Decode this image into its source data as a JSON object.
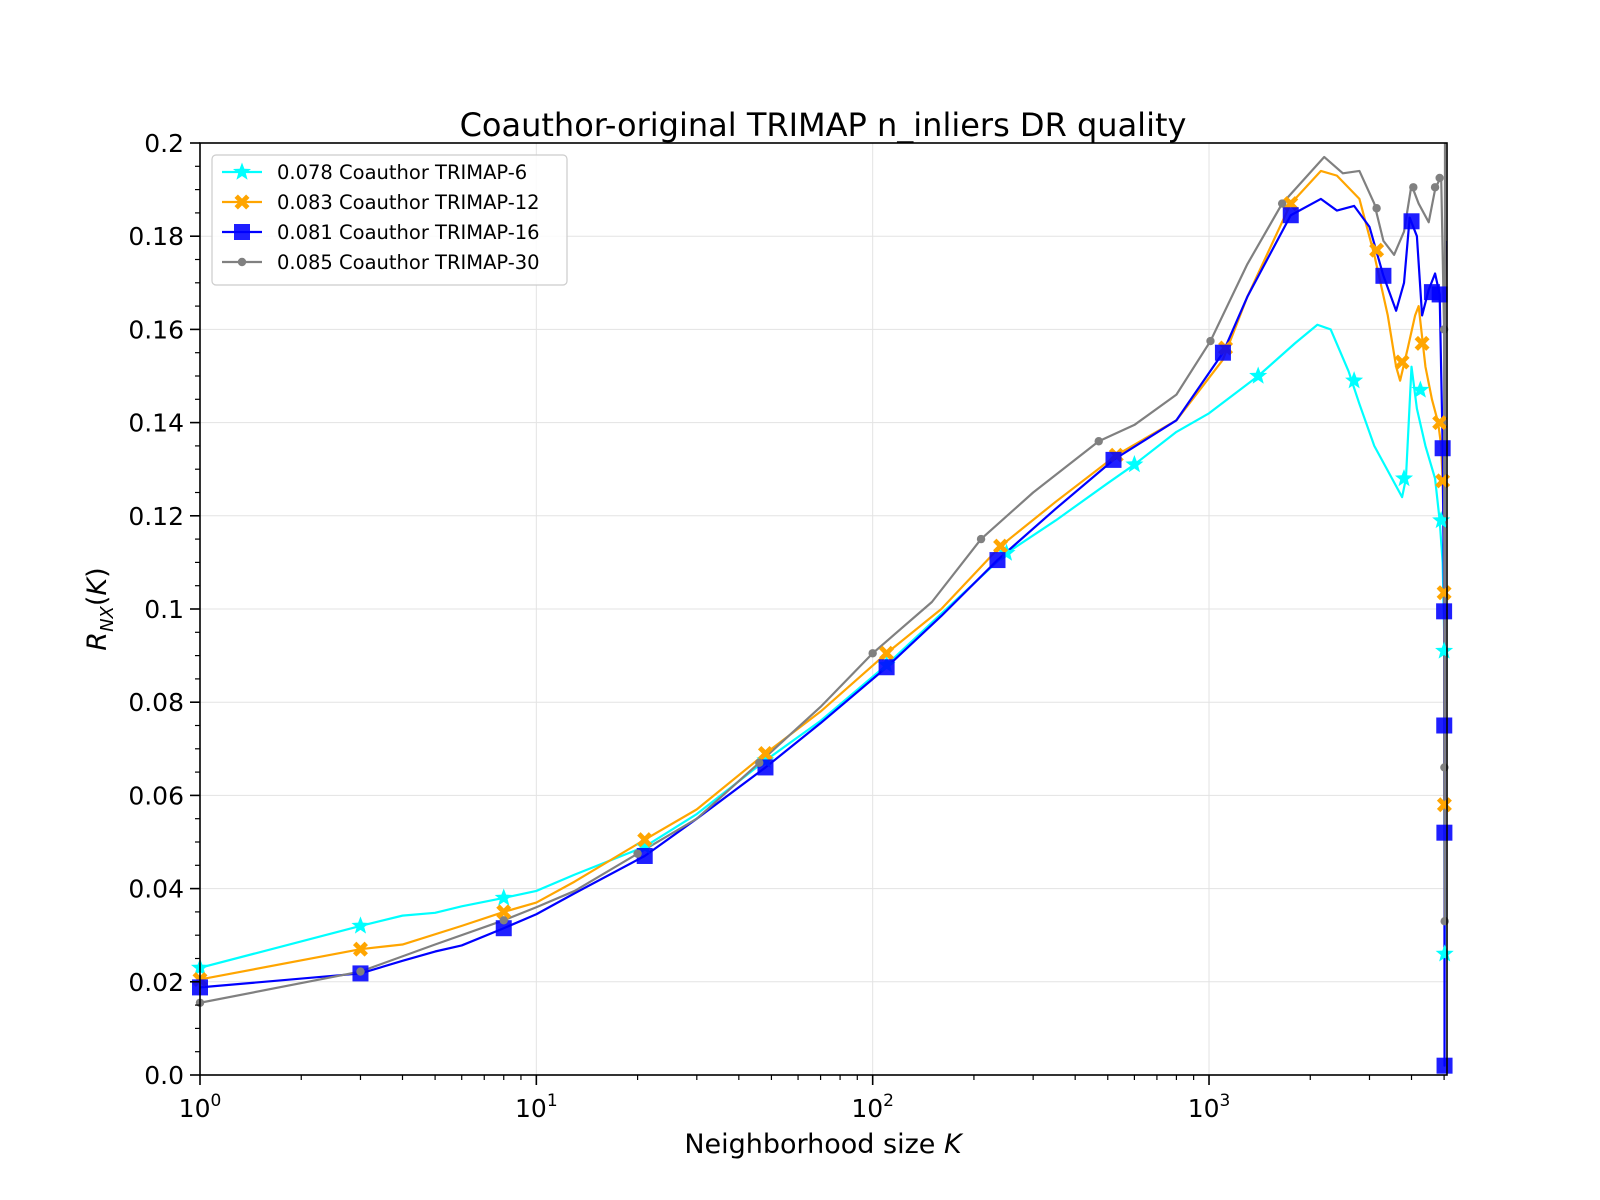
{
  "chart_data": {
    "type": "line",
    "title": "Coauthor-original TRIMAP n_inliers DR quality",
    "xlabel": "Neighborhood size K",
    "ylabel": "R_NX(K)",
    "xscale": "log",
    "xlim": [
      1,
      5100
    ],
    "ylim": [
      0.0,
      0.2
    ],
    "x_ticks": [
      {
        "value": 1,
        "mantissa": "10",
        "exp": "0"
      },
      {
        "value": 10,
        "mantissa": "10",
        "exp": "1"
      },
      {
        "value": 100,
        "mantissa": "10",
        "exp": "2"
      },
      {
        "value": 1000,
        "mantissa": "10",
        "exp": "3"
      }
    ],
    "y_ticks": [
      {
        "value": 0.0,
        "label": "0.0"
      },
      {
        "value": 0.02,
        "label": "0.02"
      },
      {
        "value": 0.04,
        "label": "0.04"
      },
      {
        "value": 0.06,
        "label": "0.06"
      },
      {
        "value": 0.08,
        "label": "0.08"
      },
      {
        "value": 0.1,
        "label": "0.1"
      },
      {
        "value": 0.12,
        "label": "0.12"
      },
      {
        "value": 0.14,
        "label": "0.14"
      },
      {
        "value": 0.16,
        "label": "0.16"
      },
      {
        "value": 0.18,
        "label": "0.18"
      },
      {
        "value": 0.2,
        "label": "0.2"
      }
    ],
    "grid": true,
    "legend_position": "top-left",
    "series": [
      {
        "name": "0.078 Coauthor TRIMAP-6",
        "color": "#00ffff",
        "marker": "star",
        "points": [
          [
            1,
            0.023
          ],
          [
            3,
            0.032
          ],
          [
            4,
            0.0342
          ],
          [
            5,
            0.0348
          ],
          [
            6,
            0.0362
          ],
          [
            8,
            0.038
          ],
          [
            10,
            0.0395
          ],
          [
            13,
            0.043
          ],
          [
            21,
            0.049
          ],
          [
            30,
            0.056
          ],
          [
            48,
            0.0675
          ],
          [
            70,
            0.076
          ],
          [
            110,
            0.088
          ],
          [
            160,
            0.099
          ],
          [
            250,
            0.112
          ],
          [
            350,
            0.119
          ],
          [
            500,
            0.127
          ],
          [
            600,
            0.131
          ],
          [
            800,
            0.138
          ],
          [
            1000,
            0.142
          ],
          [
            1400,
            0.15
          ],
          [
            1800,
            0.157
          ],
          [
            2100,
            0.161
          ],
          [
            2300,
            0.16
          ],
          [
            2600,
            0.151
          ],
          [
            2800,
            0.144
          ],
          [
            3100,
            0.135
          ],
          [
            3500,
            0.128
          ],
          [
            3750,
            0.124
          ],
          [
            3850,
            0.128
          ],
          [
            4000,
            0.152
          ],
          [
            4150,
            0.143
          ],
          [
            4400,
            0.135
          ],
          [
            4700,
            0.128
          ],
          [
            4850,
            0.119
          ],
          [
            4950,
            0.11
          ],
          [
            5000,
            0.095
          ],
          [
            5010,
            0.06
          ],
          [
            5020,
            0.026
          ]
        ],
        "markers": [
          [
            1,
            0.023
          ],
          [
            3,
            0.032
          ],
          [
            8,
            0.038
          ],
          [
            21,
            0.049
          ],
          [
            48,
            0.0675
          ],
          [
            110,
            0.088
          ],
          [
            250,
            0.112
          ],
          [
            600,
            0.131
          ],
          [
            1400,
            0.15
          ],
          [
            2700,
            0.149
          ],
          [
            3800,
            0.128
          ],
          [
            4250,
            0.147
          ],
          [
            4900,
            0.119
          ],
          [
            5000,
            0.091
          ],
          [
            5020,
            0.026
          ]
        ]
      },
      {
        "name": "0.083 Coauthor TRIMAP-12",
        "color": "#ffa500",
        "marker": "x",
        "points": [
          [
            1,
            0.0205
          ],
          [
            3,
            0.027
          ],
          [
            4,
            0.028
          ],
          [
            6,
            0.032
          ],
          [
            8,
            0.035
          ],
          [
            10,
            0.037
          ],
          [
            13,
            0.0415
          ],
          [
            21,
            0.0505
          ],
          [
            30,
            0.057
          ],
          [
            48,
            0.069
          ],
          [
            70,
            0.078
          ],
          [
            110,
            0.0905
          ],
          [
            160,
            0.1
          ],
          [
            240,
            0.1135
          ],
          [
            350,
            0.123
          ],
          [
            530,
            0.133
          ],
          [
            800,
            0.1405
          ],
          [
            1100,
            0.1535
          ],
          [
            1300,
            0.167
          ],
          [
            1750,
            0.187
          ],
          [
            2150,
            0.194
          ],
          [
            2400,
            0.193
          ],
          [
            2800,
            0.188
          ],
          [
            3100,
            0.176
          ],
          [
            3400,
            0.163
          ],
          [
            3600,
            0.152
          ],
          [
            3700,
            0.149
          ],
          [
            3900,
            0.156
          ],
          [
            4100,
            0.163
          ],
          [
            4200,
            0.165
          ],
          [
            4400,
            0.152
          ],
          [
            4600,
            0.145
          ],
          [
            4800,
            0.14
          ],
          [
            4900,
            0.135
          ],
          [
            4950,
            0.1275
          ],
          [
            5000,
            0.11
          ],
          [
            5010,
            0.058
          ],
          [
            5030,
            0.165
          ],
          [
            5040,
            0.178
          ]
        ],
        "markers": [
          [
            1,
            0.0205
          ],
          [
            3,
            0.027
          ],
          [
            8,
            0.035
          ],
          [
            21,
            0.0505
          ],
          [
            48,
            0.069
          ],
          [
            110,
            0.0905
          ],
          [
            240,
            0.1135
          ],
          [
            530,
            0.133
          ],
          [
            1120,
            0.156
          ],
          [
            1750,
            0.187
          ],
          [
            3150,
            0.177
          ],
          [
            3750,
            0.153
          ],
          [
            4300,
            0.157
          ],
          [
            4850,
            0.14
          ],
          [
            4950,
            0.1275
          ],
          [
            5000,
            0.1035
          ],
          [
            5010,
            0.058
          ]
        ]
      },
      {
        "name": "0.081 Coauthor TRIMAP-16",
        "color": "#0000ff",
        "marker": "square",
        "points": [
          [
            1,
            0.0188
          ],
          [
            3,
            0.0218
          ],
          [
            4,
            0.0245
          ],
          [
            5,
            0.0265
          ],
          [
            6,
            0.0278
          ],
          [
            8,
            0.0315
          ],
          [
            10,
            0.0345
          ],
          [
            13,
            0.039
          ],
          [
            21,
            0.047
          ],
          [
            30,
            0.055
          ],
          [
            48,
            0.066
          ],
          [
            70,
            0.0755
          ],
          [
            110,
            0.0875
          ],
          [
            160,
            0.0985
          ],
          [
            235,
            0.1105
          ],
          [
            350,
            0.1215
          ],
          [
            520,
            0.132
          ],
          [
            800,
            0.1405
          ],
          [
            1100,
            0.155
          ],
          [
            1300,
            0.167
          ],
          [
            1750,
            0.1845
          ],
          [
            2150,
            0.188
          ],
          [
            2400,
            0.1855
          ],
          [
            2700,
            0.1865
          ],
          [
            3000,
            0.182
          ],
          [
            3300,
            0.1715
          ],
          [
            3600,
            0.164
          ],
          [
            3800,
            0.17
          ],
          [
            3950,
            0.184
          ],
          [
            4150,
            0.18
          ],
          [
            4300,
            0.163
          ],
          [
            4500,
            0.1685
          ],
          [
            4700,
            0.172
          ],
          [
            4850,
            0.1675
          ],
          [
            4950,
            0.135
          ],
          [
            5000,
            0.0995
          ],
          [
            5005,
            0.075
          ],
          [
            5010,
            0.052
          ],
          [
            5015,
            0.002
          ],
          [
            5030,
            0.17
          ],
          [
            5040,
            0.179
          ]
        ],
        "markers": [
          [
            1,
            0.0188
          ],
          [
            3,
            0.0218
          ],
          [
            8,
            0.0315
          ],
          [
            21,
            0.047
          ],
          [
            48,
            0.066
          ],
          [
            110,
            0.0875
          ],
          [
            235,
            0.1105
          ],
          [
            520,
            0.132
          ],
          [
            1100,
            0.155
          ],
          [
            1750,
            0.1845
          ],
          [
            3300,
            0.1715
          ],
          [
            4000,
            0.1832
          ],
          [
            4600,
            0.168
          ],
          [
            4850,
            0.1675
          ],
          [
            4950,
            0.1345
          ],
          [
            5000,
            0.0995
          ],
          [
            5005,
            0.075
          ],
          [
            5010,
            0.052
          ],
          [
            5015,
            0.002
          ]
        ]
      },
      {
        "name": "0.085 Coauthor TRIMAP-30",
        "color": "#808080",
        "marker": "dot",
        "points": [
          [
            1,
            0.0155
          ],
          [
            3,
            0.0222
          ],
          [
            5,
            0.028
          ],
          [
            8,
            0.0332
          ],
          [
            10,
            0.036
          ],
          [
            13,
            0.0395
          ],
          [
            20,
            0.0475
          ],
          [
            30,
            0.055
          ],
          [
            46,
            0.067
          ],
          [
            70,
            0.079
          ],
          [
            100,
            0.0905
          ],
          [
            150,
            0.1015
          ],
          [
            210,
            0.115
          ],
          [
            300,
            0.125
          ],
          [
            470,
            0.136
          ],
          [
            600,
            0.1395
          ],
          [
            800,
            0.146
          ],
          [
            1010,
            0.1575
          ],
          [
            1300,
            0.174
          ],
          [
            1650,
            0.187
          ],
          [
            2200,
            0.197
          ],
          [
            2500,
            0.1935
          ],
          [
            2800,
            0.194
          ],
          [
            3100,
            0.187
          ],
          [
            3300,
            0.179
          ],
          [
            3550,
            0.176
          ],
          [
            3800,
            0.181
          ],
          [
            4000,
            0.191
          ],
          [
            4200,
            0.187
          ],
          [
            4500,
            0.183
          ],
          [
            4700,
            0.19
          ],
          [
            4900,
            0.193
          ],
          [
            5000,
            0.16
          ],
          [
            5010,
            0.066
          ],
          [
            5020,
            0.033
          ],
          [
            5030,
            0.2
          ]
        ],
        "markers": [
          [
            1,
            0.0155
          ],
          [
            3,
            0.0222
          ],
          [
            8,
            0.0332
          ],
          [
            20,
            0.0475
          ],
          [
            46,
            0.067
          ],
          [
            100,
            0.0905
          ],
          [
            210,
            0.115
          ],
          [
            470,
            0.136
          ],
          [
            1010,
            0.1575
          ],
          [
            1650,
            0.187
          ],
          [
            3150,
            0.186
          ],
          [
            4050,
            0.1905
          ],
          [
            4700,
            0.1905
          ],
          [
            4850,
            0.1925
          ],
          [
            5000,
            0.16
          ],
          [
            5010,
            0.066
          ],
          [
            5020,
            0.033
          ]
        ]
      }
    ]
  }
}
